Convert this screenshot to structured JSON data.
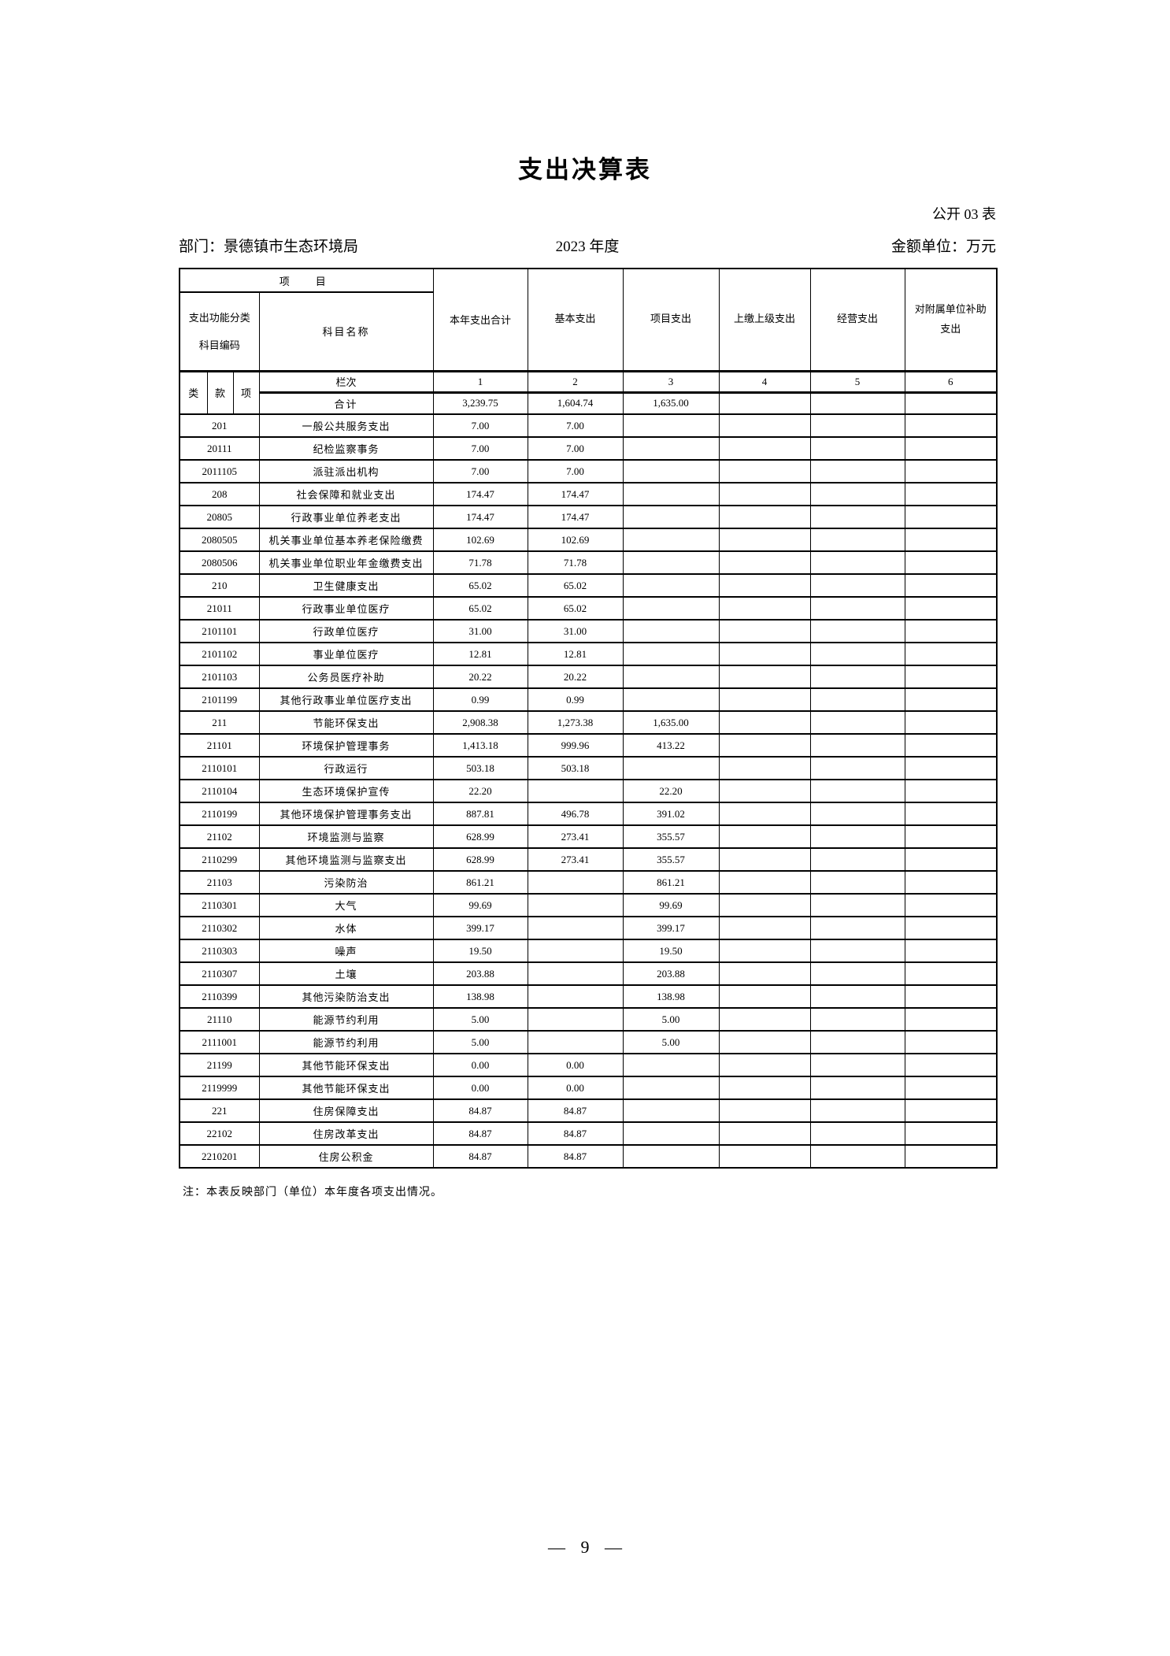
{
  "page": {
    "title": "支出决算表",
    "sheet_label": "公开 03 表",
    "department": "部门：景德镇市生态环境局",
    "period": "2023 年度",
    "unit": "金额单位：万元",
    "footnote": "注：本表反映部门（单位）本年度各项支出情况。",
    "page_number": "— 9 —"
  },
  "table": {
    "header": {
      "project_group_label": "项　目",
      "code_label_line1": "支出功能分类",
      "code_label_line2": "科目编码",
      "subject_name_label": "科目名称",
      "code_sub_columns": [
        "类",
        "款",
        "项"
      ],
      "lanci_label": "栏次",
      "columns": [
        "本年支出合计",
        "基本支出",
        "项目支出",
        "上缴上级支出",
        "经营支出",
        "对附属单位补助支出"
      ],
      "column_numbers": [
        "1",
        "2",
        "3",
        "4",
        "5",
        "6"
      ]
    },
    "total_row": {
      "label": "合计",
      "values": [
        "3,239.75",
        "1,604.74",
        "1,635.00",
        "",
        "",
        ""
      ]
    },
    "rows": [
      {
        "code": "201",
        "name": "一般公共服务支出",
        "values": [
          "7.00",
          "7.00",
          "",
          "",
          "",
          ""
        ]
      },
      {
        "code": "20111",
        "name": "纪检监察事务",
        "values": [
          "7.00",
          "7.00",
          "",
          "",
          "",
          ""
        ]
      },
      {
        "code": "2011105",
        "name": "派驻派出机构",
        "values": [
          "7.00",
          "7.00",
          "",
          "",
          "",
          ""
        ]
      },
      {
        "code": "208",
        "name": "社会保障和就业支出",
        "values": [
          "174.47",
          "174.47",
          "",
          "",
          "",
          ""
        ]
      },
      {
        "code": "20805",
        "name": "行政事业单位养老支出",
        "values": [
          "174.47",
          "174.47",
          "",
          "",
          "",
          ""
        ]
      },
      {
        "code": "2080505",
        "name": "机关事业单位基本养老保险缴费",
        "values": [
          "102.69",
          "102.69",
          "",
          "",
          "",
          ""
        ]
      },
      {
        "code": "2080506",
        "name": "机关事业单位职业年金缴费支出",
        "values": [
          "71.78",
          "71.78",
          "",
          "",
          "",
          ""
        ]
      },
      {
        "code": "210",
        "name": "卫生健康支出",
        "values": [
          "65.02",
          "65.02",
          "",
          "",
          "",
          ""
        ]
      },
      {
        "code": "21011",
        "name": "行政事业单位医疗",
        "values": [
          "65.02",
          "65.02",
          "",
          "",
          "",
          ""
        ]
      },
      {
        "code": "2101101",
        "name": "行政单位医疗",
        "values": [
          "31.00",
          "31.00",
          "",
          "",
          "",
          ""
        ]
      },
      {
        "code": "2101102",
        "name": "事业单位医疗",
        "values": [
          "12.81",
          "12.81",
          "",
          "",
          "",
          ""
        ]
      },
      {
        "code": "2101103",
        "name": "公务员医疗补助",
        "values": [
          "20.22",
          "20.22",
          "",
          "",
          "",
          ""
        ]
      },
      {
        "code": "2101199",
        "name": "其他行政事业单位医疗支出",
        "values": [
          "0.99",
          "0.99",
          "",
          "",
          "",
          ""
        ]
      },
      {
        "code": "211",
        "name": "节能环保支出",
        "values": [
          "2,908.38",
          "1,273.38",
          "1,635.00",
          "",
          "",
          ""
        ]
      },
      {
        "code": "21101",
        "name": "环境保护管理事务",
        "values": [
          "1,413.18",
          "999.96",
          "413.22",
          "",
          "",
          ""
        ]
      },
      {
        "code": "2110101",
        "name": "行政运行",
        "values": [
          "503.18",
          "503.18",
          "",
          "",
          "",
          ""
        ]
      },
      {
        "code": "2110104",
        "name": "生态环境保护宣传",
        "values": [
          "22.20",
          "",
          "22.20",
          "",
          "",
          ""
        ]
      },
      {
        "code": "2110199",
        "name": "其他环境保护管理事务支出",
        "values": [
          "887.81",
          "496.78",
          "391.02",
          "",
          "",
          ""
        ]
      },
      {
        "code": "21102",
        "name": "环境监测与监察",
        "values": [
          "628.99",
          "273.41",
          "355.57",
          "",
          "",
          ""
        ]
      },
      {
        "code": "2110299",
        "name": "其他环境监测与监察支出",
        "values": [
          "628.99",
          "273.41",
          "355.57",
          "",
          "",
          ""
        ]
      },
      {
        "code": "21103",
        "name": "污染防治",
        "values": [
          "861.21",
          "",
          "861.21",
          "",
          "",
          ""
        ]
      },
      {
        "code": "2110301",
        "name": "大气",
        "values": [
          "99.69",
          "",
          "99.69",
          "",
          "",
          ""
        ]
      },
      {
        "code": "2110302",
        "name": "水体",
        "values": [
          "399.17",
          "",
          "399.17",
          "",
          "",
          ""
        ]
      },
      {
        "code": "2110303",
        "name": "噪声",
        "values": [
          "19.50",
          "",
          "19.50",
          "",
          "",
          ""
        ]
      },
      {
        "code": "2110307",
        "name": "土壤",
        "values": [
          "203.88",
          "",
          "203.88",
          "",
          "",
          ""
        ]
      },
      {
        "code": "2110399",
        "name": "其他污染防治支出",
        "values": [
          "138.98",
          "",
          "138.98",
          "",
          "",
          ""
        ]
      },
      {
        "code": "21110",
        "name": "能源节约利用",
        "values": [
          "5.00",
          "",
          "5.00",
          "",
          "",
          ""
        ]
      },
      {
        "code": "2111001",
        "name": "能源节约利用",
        "values": [
          "5.00",
          "",
          "5.00",
          "",
          "",
          ""
        ]
      },
      {
        "code": "21199",
        "name": "其他节能环保支出",
        "values": [
          "0.00",
          "0.00",
          "",
          "",
          "",
          ""
        ]
      },
      {
        "code": "2119999",
        "name": "其他节能环保支出",
        "values": [
          "0.00",
          "0.00",
          "",
          "",
          "",
          ""
        ]
      },
      {
        "code": "221",
        "name": "住房保障支出",
        "values": [
          "84.87",
          "84.87",
          "",
          "",
          "",
          ""
        ]
      },
      {
        "code": "22102",
        "name": "住房改革支出",
        "values": [
          "84.87",
          "84.87",
          "",
          "",
          "",
          ""
        ]
      },
      {
        "code": "2210201",
        "name": "住房公积金",
        "values": [
          "84.87",
          "84.87",
          "",
          "",
          "",
          ""
        ]
      }
    ]
  }
}
